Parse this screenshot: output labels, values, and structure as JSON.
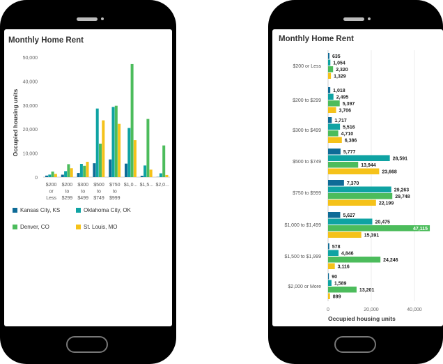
{
  "colors": {
    "kansas": "#0e6b97",
    "oklahoma": "#0fa3a3",
    "denver": "#4cbc5c",
    "stlouis": "#f5c21a"
  },
  "left_title": "Monthly Home Rent",
  "right_title": "Monthly Home Rent",
  "left_categories": [
    [
      "$200",
      "or",
      "Less"
    ],
    [
      "$200",
      "to",
      "$299"
    ],
    [
      "$300",
      "to",
      "$499"
    ],
    [
      "$500",
      "to",
      "$749"
    ],
    [
      "$750",
      "to",
      "$999"
    ],
    [
      "$1,0..."
    ],
    [
      "$1,5..."
    ],
    [
      "$2,0..."
    ]
  ],
  "legend": [
    "Kansas City, KS",
    "Oklahoma City, OK",
    "Denver, CO",
    "St. Louis, MO"
  ],
  "chart_data": [
    {
      "type": "bar",
      "orientation": "vertical",
      "title": "Monthly Home Rent",
      "ylabel": "Occupied housing units",
      "ylim": [
        0,
        50000
      ],
      "yticks": [
        "0",
        "10,000",
        "20,000",
        "30,000",
        "40,000",
        "50,000"
      ],
      "series": [
        {
          "name": "Kansas City, KS",
          "values": [
            635,
            1018,
            1717,
            5777,
            7370,
            5627,
            578,
            90
          ]
        },
        {
          "name": "Oklahoma City, OK",
          "values": [
            1054,
            2495,
            5516,
            28591,
            29263,
            20475,
            4846,
            1589
          ]
        },
        {
          "name": "Denver, CO",
          "values": [
            2320,
            5397,
            4710,
            13944,
            29748,
            47115,
            24246,
            13201
          ]
        },
        {
          "name": "St. Louis, MO",
          "values": [
            1329,
            3706,
            6386,
            23668,
            22199,
            15391,
            3116,
            899
          ]
        }
      ],
      "legend_position": "bottom"
    },
    {
      "type": "bar",
      "orientation": "horizontal",
      "title": "Monthly Home Rent",
      "xlabel": "Occupied housing units",
      "xlim": [
        0,
        50000
      ],
      "xticks": [
        "0",
        "20,000",
        "40,000"
      ],
      "categories": [
        "$200 or Less",
        "$200 to $299",
        "$300 to $499",
        "$500 to $749",
        "$750 to $999",
        "$1,000 to $1,499",
        "$1,500 to $1,999",
        "$2,000 or More"
      ],
      "series": [
        {
          "name": "Kansas City, KS",
          "values": [
            635,
            1018,
            1717,
            5777,
            7370,
            5627,
            578,
            90
          ],
          "labels": [
            "635",
            "1,018",
            "1,717",
            "5,777",
            "7,370",
            "5,627",
            "578",
            "90"
          ]
        },
        {
          "name": "Oklahoma City, OK",
          "values": [
            1054,
            2495,
            5516,
            28591,
            29263,
            20475,
            4846,
            1589
          ],
          "labels": [
            "1,054",
            "2,495",
            "5,516",
            "28,591",
            "29,263",
            "20,475",
            "4,846",
            "1,589"
          ]
        },
        {
          "name": "Denver, CO",
          "values": [
            2320,
            5397,
            4710,
            13944,
            29748,
            47115,
            24246,
            13201
          ],
          "labels": [
            "2,320",
            "5,397",
            "4,710",
            "13,944",
            "29,748",
            "47,115",
            "24,246",
            "13,201"
          ]
        },
        {
          "name": "St. Louis, MO",
          "values": [
            1329,
            3706,
            6386,
            23668,
            22199,
            15391,
            3116,
            899
          ],
          "labels": [
            "1,329",
            "3,706",
            "6,386",
            "23,668",
            "22,199",
            "15,391",
            "3,116",
            "899"
          ]
        }
      ]
    }
  ]
}
